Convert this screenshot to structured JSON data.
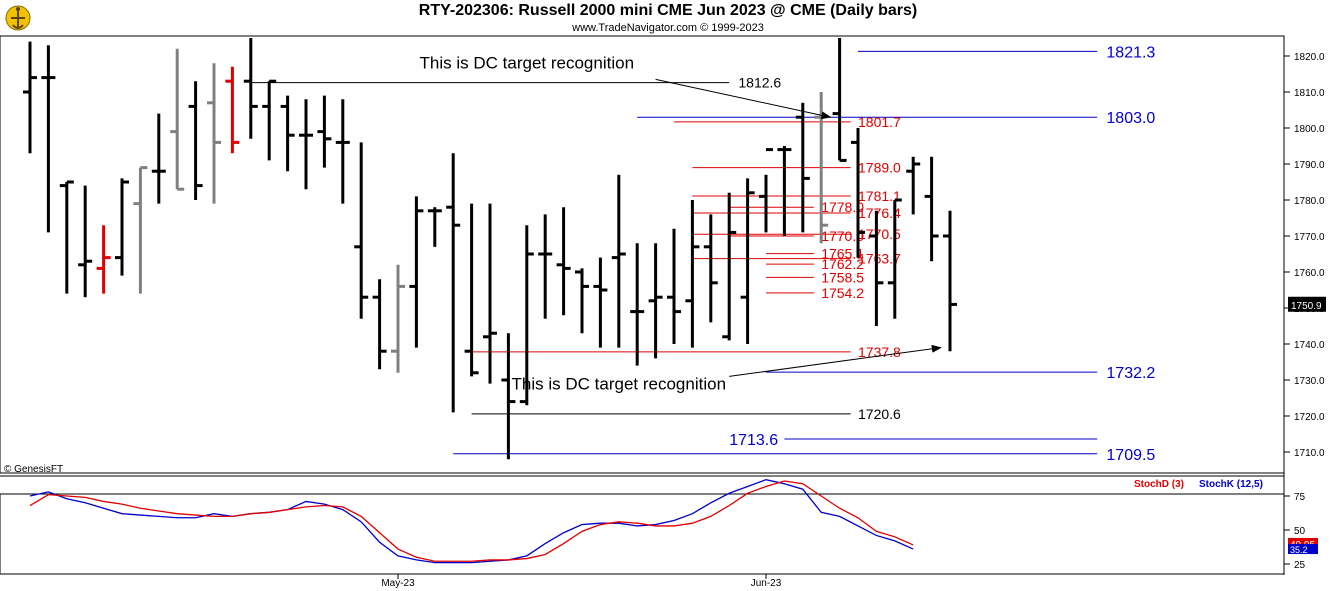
{
  "header": {
    "title": "RTY-202306:  Russell 2000 mini CME Jun 2023 @ CME  (Daily bars)",
    "subtitle": "www.TradeNavigator.com © 1999-2023",
    "watermark": "© GenesisFT"
  },
  "chart_data": {
    "type": "bar",
    "price_axis": {
      "ticks": [
        "1820.0",
        "1810.0",
        "1800.0",
        "1790.0",
        "1780.0",
        "1770.0",
        "1760.0",
        "1750.0",
        "1740.0",
        "1730.0",
        "1720.0",
        "1710.0"
      ],
      "tick_values": [
        1820,
        1810,
        1800,
        1790,
        1780,
        1770,
        1760,
        1750,
        1740,
        1730,
        1720,
        1710
      ],
      "last_price": "1750.9",
      "last_price_value": 1750.9
    },
    "time_axis": {
      "labels": [
        "May-23",
        "Jun-23"
      ],
      "label_bar_index": [
        20,
        40
      ]
    },
    "colors": {
      "up_bar": "#000000",
      "neutral_bar": "#808080",
      "signal_bar": "#e00000",
      "red_level": "#e00000",
      "blue_level": "#0000cc",
      "black_level": "#000000",
      "stoch_d": "#e00000",
      "stoch_k": "#0000cc"
    },
    "ohlc_bars": [
      {
        "h": 1824,
        "l": 1793,
        "o": 1810,
        "c": 1814,
        "color": "black"
      },
      {
        "h": 1823,
        "l": 1771,
        "o": 1814,
        "c": 1814,
        "color": "black"
      },
      {
        "h": 1785,
        "l": 1754,
        "o": 1784,
        "c": 1785,
        "color": "black"
      },
      {
        "h": 1784,
        "l": 1753,
        "o": 1762,
        "c": 1763,
        "color": "black"
      },
      {
        "h": 1773,
        "l": 1754,
        "o": 1761,
        "c": 1764,
        "color": "red"
      },
      {
        "h": 1786,
        "l": 1759,
        "o": 1764,
        "c": 1785,
        "color": "black"
      },
      {
        "h": 1789,
        "l": 1754,
        "o": 1779,
        "c": 1789,
        "color": "gray"
      },
      {
        "h": 1804,
        "l": 1779,
        "o": 1788,
        "c": 1788,
        "color": "black"
      },
      {
        "h": 1822,
        "l": 1783,
        "o": 1799,
        "c": 1783,
        "color": "gray"
      },
      {
        "h": 1813,
        "l": 1780,
        "o": 1806,
        "c": 1784,
        "color": "black"
      },
      {
        "h": 1818,
        "l": 1779,
        "o": 1807,
        "c": 1796,
        "color": "gray"
      },
      {
        "h": 1817,
        "l": 1793,
        "o": 1813,
        "c": 1796,
        "color": "red"
      },
      {
        "h": 1825,
        "l": 1797,
        "o": 1813,
        "c": 1806,
        "color": "black"
      },
      {
        "h": 1813,
        "l": 1791,
        "o": 1806,
        "c": 1813,
        "color": "black"
      },
      {
        "h": 1809,
        "l": 1788,
        "o": 1806,
        "c": 1798,
        "color": "black"
      },
      {
        "h": 1808,
        "l": 1783,
        "o": 1798,
        "c": 1798,
        "color": "black"
      },
      {
        "h": 1809,
        "l": 1789,
        "o": 1799,
        "c": 1797,
        "color": "black"
      },
      {
        "h": 1808,
        "l": 1779,
        "o": 1796,
        "c": 1796,
        "color": "black"
      },
      {
        "h": 1796,
        "l": 1747,
        "o": 1767,
        "c": 1753,
        "color": "black"
      },
      {
        "h": 1758,
        "l": 1733,
        "o": 1753,
        "c": 1738,
        "color": "black"
      },
      {
        "h": 1762,
        "l": 1732,
        "o": 1738,
        "c": 1756,
        "color": "gray"
      },
      {
        "h": 1781,
        "l": 1739,
        "o": 1756,
        "c": 1777,
        "color": "black"
      },
      {
        "h": 1778,
        "l": 1767,
        "o": 1777,
        "c": 1777,
        "color": "black"
      },
      {
        "h": 1793,
        "l": 1721,
        "o": 1778,
        "c": 1773,
        "color": "black"
      },
      {
        "h": 1779,
        "l": 1731,
        "o": 1738,
        "c": 1732,
        "color": "black"
      },
      {
        "h": 1779,
        "l": 1729,
        "o": 1742,
        "c": 1743,
        "color": "black"
      },
      {
        "h": 1743,
        "l": 1708,
        "o": 1730,
        "c": 1724,
        "color": "black"
      },
      {
        "h": 1773,
        "l": 1723,
        "o": 1724,
        "c": 1765,
        "color": "black"
      },
      {
        "h": 1776,
        "l": 1747,
        "o": 1765,
        "c": 1765,
        "color": "black"
      },
      {
        "h": 1778,
        "l": 1748,
        "o": 1762,
        "c": 1761,
        "color": "black"
      },
      {
        "h": 1761,
        "l": 1743,
        "o": 1760,
        "c": 1756,
        "color": "black"
      },
      {
        "h": 1764,
        "l": 1739,
        "o": 1756,
        "c": 1755,
        "color": "black"
      },
      {
        "h": 1787,
        "l": 1739,
        "o": 1764,
        "c": 1765,
        "color": "black"
      },
      {
        "h": 1768,
        "l": 1734,
        "o": 1749,
        "c": 1749,
        "color": "black"
      },
      {
        "h": 1768,
        "l": 1736,
        "o": 1752,
        "c": 1753,
        "color": "black"
      },
      {
        "h": 1772,
        "l": 1740,
        "o": 1753,
        "c": 1749,
        "color": "black"
      },
      {
        "h": 1780,
        "l": 1739,
        "o": 1752,
        "c": 1767,
        "color": "black"
      },
      {
        "h": 1776,
        "l": 1746,
        "o": 1767,
        "c": 1757,
        "color": "black"
      },
      {
        "h": 1782,
        "l": 1741,
        "o": 1742,
        "c": 1771,
        "color": "black"
      },
      {
        "h": 1786,
        "l": 1740,
        "o": 1753,
        "c": 1782,
        "color": "black"
      },
      {
        "h": 1787,
        "l": 1771,
        "o": 1781,
        "c": 1794,
        "color": "black"
      },
      {
        "h": 1795,
        "l": 1770,
        "o": 1794,
        "c": 1794,
        "color": "black"
      },
      {
        "h": 1807,
        "l": 1771,
        "o": 1803,
        "c": 1786,
        "color": "black"
      },
      {
        "h": 1810,
        "l": 1768,
        "o": 1803,
        "c": 1773,
        "color": "gray"
      },
      {
        "h": 1825,
        "l": 1791,
        "o": 1804,
        "c": 1791,
        "color": "black"
      },
      {
        "h": 1800,
        "l": 1764,
        "o": 1796,
        "c": 1771,
        "color": "black"
      },
      {
        "h": 1777,
        "l": 1745,
        "o": 1770,
        "c": 1757,
        "color": "black"
      },
      {
        "h": 1780,
        "l": 1747,
        "o": 1757,
        "c": 1780,
        "color": "black"
      },
      {
        "h": 1792,
        "l": 1776,
        "o": 1788,
        "c": 1790,
        "color": "black"
      },
      {
        "h": 1792,
        "l": 1763,
        "o": 1781,
        "c": 1770,
        "color": "black"
      },
      {
        "h": 1777,
        "l": 1738,
        "o": 1770,
        "c": 1751,
        "color": "black"
      }
    ],
    "levels": [
      {
        "value": 1821.3,
        "label": "1821.3",
        "color": "blue",
        "bar_from": 45,
        "bar_to": 58,
        "label_bar": 58.5,
        "size": "big"
      },
      {
        "value": 1812.6,
        "label": "1812.6",
        "color": "black",
        "bar_from": 12,
        "bar_to": 38,
        "label_bar": 38.5,
        "size": "med"
      },
      {
        "value": 1803.0,
        "label": "1803.0",
        "color": "blue",
        "bar_from": 33,
        "bar_to": 58,
        "label_bar": 58.5,
        "size": "big"
      },
      {
        "value": 1801.7,
        "label": "1801.7",
        "color": "red",
        "bar_from": 35,
        "bar_to": 44.6,
        "label_bar": 45,
        "size": "med"
      },
      {
        "value": 1789.0,
        "label": "1789.0",
        "color": "red",
        "bar_from": 36,
        "bar_to": 44.6,
        "label_bar": 45,
        "size": "med"
      },
      {
        "value": 1781.1,
        "label": "1781.1",
        "color": "red",
        "bar_from": 36,
        "bar_to": 44.6,
        "label_bar": 45,
        "size": "med"
      },
      {
        "value": 1778.0,
        "label": "1778.0",
        "color": "red",
        "bar_from": 38,
        "bar_to": 42.6,
        "label_bar": 43,
        "size": "med"
      },
      {
        "value": 1776.4,
        "label": "1776.4",
        "color": "red",
        "bar_from": 36,
        "bar_to": 44.6,
        "label_bar": 45,
        "size": "med"
      },
      {
        "value": 1770.0,
        "label": "1770.0",
        "color": "red",
        "bar_from": 38,
        "bar_to": 42.6,
        "label_bar": 43,
        "size": "med"
      },
      {
        "value": 1770.5,
        "label": "1770.5",
        "color": "red",
        "bar_from": 36,
        "bar_to": 44.6,
        "label_bar": 45,
        "size": "med"
      },
      {
        "value": 1765.1,
        "label": "1765.1",
        "color": "red",
        "bar_from": 40,
        "bar_to": 42.6,
        "label_bar": 43,
        "size": "med"
      },
      {
        "value": 1763.7,
        "label": "1763.7",
        "color": "red",
        "bar_from": 36,
        "bar_to": 44.6,
        "label_bar": 45,
        "size": "med"
      },
      {
        "value": 1762.2,
        "label": "1762.2",
        "color": "red",
        "bar_from": 40,
        "bar_to": 42.6,
        "label_bar": 43,
        "size": "med"
      },
      {
        "value": 1758.5,
        "label": "1758.5",
        "color": "red",
        "bar_from": 40,
        "bar_to": 42.6,
        "label_bar": 43,
        "size": "med"
      },
      {
        "value": 1754.2,
        "label": "1754.2",
        "color": "red",
        "bar_from": 40,
        "bar_to": 42.6,
        "label_bar": 43,
        "size": "med"
      },
      {
        "value": 1737.8,
        "label": "1737.8",
        "color": "red",
        "bar_from": 24,
        "bar_to": 44.6,
        "label_bar": 45,
        "size": "med"
      },
      {
        "value": 1732.2,
        "label": "1732.2",
        "color": "blue",
        "bar_from": 40,
        "bar_to": 58,
        "label_bar": 58.5,
        "size": "big"
      },
      {
        "value": 1720.6,
        "label": "1720.6",
        "color": "black",
        "bar_from": 24,
        "bar_to": 44.6,
        "label_bar": 45,
        "size": "med"
      },
      {
        "value": 1713.6,
        "label": "1713.6",
        "color": "blue",
        "bar_from": 41,
        "bar_to": 58,
        "label_bar": 38,
        "size": "big"
      },
      {
        "value": 1709.5,
        "label": "1709.5",
        "color": "blue",
        "bar_from": 23,
        "bar_to": 58,
        "label_bar": 58.5,
        "size": "big"
      }
    ],
    "annotations": [
      {
        "text": "This is DC target recognition",
        "text_bar": 27,
        "text_value": 1816.5,
        "arrow_from_bar": 34,
        "arrow_from_value": 1813.5,
        "arrow_to_bar": 43.5,
        "arrow_to_value": 1803
      },
      {
        "text": "This is DC target recognition",
        "text_bar": 32,
        "text_value": 1727.4,
        "arrow_from_bar": 38,
        "arrow_from_value": 1731,
        "arrow_to_bar": 49.5,
        "arrow_to_value": 1739
      }
    ],
    "stochastic": {
      "legend_d": "StochD (3)",
      "legend_k": "StochK (12,5)",
      "ticks": [
        "75",
        "50",
        "25"
      ],
      "tick_values": [
        75,
        50,
        25
      ],
      "last_d": "40.95",
      "last_k": "35.2",
      "d_values": [
        68,
        76,
        75,
        74,
        71,
        69,
        66,
        64,
        62,
        61,
        60,
        60,
        62,
        63,
        65,
        67,
        68,
        67,
        60,
        48,
        36,
        30,
        27,
        27,
        27,
        28,
        28,
        29,
        32,
        40,
        49,
        54,
        56,
        55,
        53,
        53,
        55,
        60,
        68,
        77,
        82,
        86,
        84,
        75,
        66,
        59,
        49,
        45,
        39
      ],
      "k_values": [
        75,
        78,
        73,
        70,
        66,
        62,
        61,
        60,
        59,
        59,
        62,
        60,
        62,
        63,
        65,
        71,
        69,
        65,
        56,
        41,
        31,
        28,
        26,
        26,
        26,
        27,
        28,
        31,
        40,
        48,
        54,
        55,
        55,
        53,
        54,
        57,
        62,
        70,
        77,
        82,
        87,
        84,
        80,
        63,
        60,
        53,
        46,
        42,
        36
      ]
    }
  }
}
